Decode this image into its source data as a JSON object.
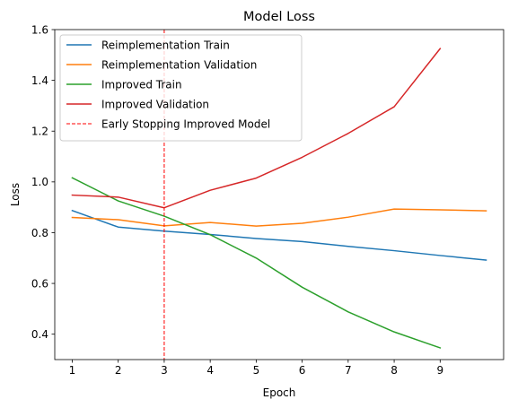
{
  "chart_data": {
    "type": "line",
    "title": "Model Loss",
    "xlabel": "Epoch",
    "ylabel": "Loss",
    "xlim": [
      0.62,
      10.38
    ],
    "ylim": [
      0.3,
      1.6
    ],
    "xticks": [
      1,
      2,
      3,
      4,
      5,
      6,
      7,
      8,
      9
    ],
    "yticks": [
      0.4,
      0.6,
      0.8,
      1.0,
      1.2,
      1.4,
      1.6
    ],
    "ytick_labels": [
      "0.4",
      "0.6",
      "0.8",
      "1.0",
      "1.2",
      "1.4",
      "1.6"
    ],
    "grid": false,
    "legend_position": "top-left",
    "series": [
      {
        "name": "Reimplementation Train",
        "color": "#1f77b4",
        "x": [
          1,
          2,
          3,
          4,
          5,
          6,
          7,
          8,
          9,
          10
        ],
        "y": [
          0.887,
          0.822,
          0.806,
          0.793,
          0.777,
          0.765,
          0.746,
          0.729,
          0.71,
          0.692
        ]
      },
      {
        "name": "Reimplementation Validation",
        "color": "#ff7f0e",
        "x": [
          1,
          2,
          3,
          4,
          5,
          6,
          7,
          8,
          9,
          10
        ],
        "y": [
          0.86,
          0.851,
          0.827,
          0.84,
          0.826,
          0.837,
          0.861,
          0.893,
          0.89,
          0.886
        ]
      },
      {
        "name": "Improved Train",
        "color": "#2ca02c",
        "x": [
          1,
          2,
          3,
          4,
          5,
          6,
          7,
          8,
          9
        ],
        "y": [
          1.016,
          0.925,
          0.865,
          0.792,
          0.7,
          0.585,
          0.488,
          0.409,
          0.346
        ]
      },
      {
        "name": "Improved Validation",
        "color": "#d62728",
        "x": [
          1,
          2,
          3,
          4,
          5,
          6,
          7,
          8,
          9
        ],
        "y": [
          0.948,
          0.94,
          0.898,
          0.967,
          1.015,
          1.097,
          1.191,
          1.296,
          1.525
        ]
      }
    ],
    "vlines": [
      {
        "name": "Early Stopping Improved Model",
        "x": 3,
        "color": "#ff0000",
        "style": "dashed"
      }
    ]
  }
}
